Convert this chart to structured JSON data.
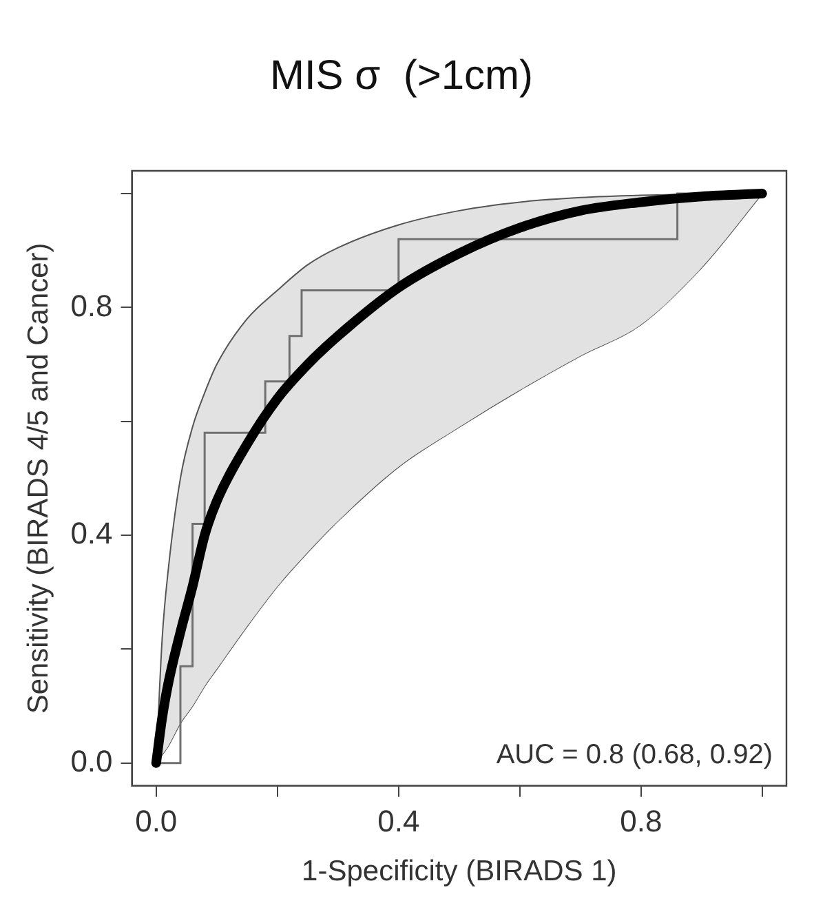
{
  "chart_data": {
    "type": "line",
    "title": "MIS σ  (>1cm)",
    "xlabel": "1-Specificity (BIRADS 1)",
    "ylabel": "Sensitivity (BIRADS 4/5 and Cancer)",
    "xlim": [
      -0.04,
      1.04
    ],
    "ylim": [
      -0.04,
      1.04
    ],
    "xticks": [
      {
        "value": 0,
        "label": "0.0"
      },
      {
        "value": 0.2,
        "label": null
      },
      {
        "value": 0.4,
        "label": "0.4"
      },
      {
        "value": 0.6,
        "label": null
      },
      {
        "value": 0.8,
        "label": "0.8"
      },
      {
        "value": 1,
        "label": null
      }
    ],
    "yticks": [
      {
        "value": 0,
        "label": "0.0"
      },
      {
        "value": 0.2,
        "label": null
      },
      {
        "value": 0.4,
        "label": "0.4"
      },
      {
        "value": 0.6,
        "label": null
      },
      {
        "value": 0.8,
        "label": "0.8"
      },
      {
        "value": 1,
        "label": null
      }
    ],
    "grid": false,
    "legend": false,
    "marker": "none",
    "annotations": [
      "AUC = 0.8 (0.68, 0.92)"
    ],
    "series": [
      {
        "type": "line",
        "color": "#000000",
        "x": [
          0,
          0.01,
          0.02,
          0.04,
          0.06,
          0.08,
          0.1,
          0.15,
          0.2,
          0.25,
          0.3,
          0.4,
          0.5,
          0.6,
          0.7,
          0.8,
          0.9,
          1
        ],
        "values": [
          0,
          0.08,
          0.14,
          0.23,
          0.31,
          0.4,
          0.46,
          0.56,
          0.64,
          0.7,
          0.75,
          0.835,
          0.895,
          0.94,
          0.97,
          0.985,
          0.995,
          1
        ],
        "upper": [
          0,
          0.22,
          0.34,
          0.5,
          0.59,
          0.65,
          0.7,
          0.78,
          0.83,
          0.875,
          0.905,
          0.945,
          0.97,
          0.985,
          0.993,
          0.997,
          0.999,
          1
        ],
        "lower": [
          0,
          0.015,
          0.03,
          0.07,
          0.1,
          0.135,
          0.165,
          0.24,
          0.31,
          0.37,
          0.425,
          0.52,
          0.59,
          0.655,
          0.715,
          0.77,
          0.87,
          1
        ]
      },
      {
        "type": "step",
        "color": "#707070",
        "x": [
          0,
          0.04,
          0.06,
          0.08,
          0.18,
          0.22,
          0.24,
          0.4,
          0.86,
          1
        ],
        "values": [
          0,
          0.17,
          0.42,
          0.58,
          0.67,
          0.75,
          0.83,
          0.92,
          1,
          1
        ]
      }
    ]
  }
}
